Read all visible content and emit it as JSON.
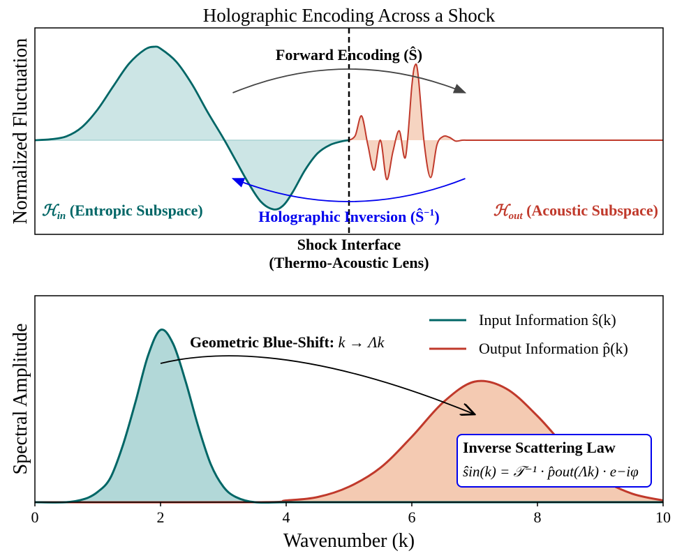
{
  "figure": {
    "colors": {
      "teal": "#006666",
      "teal_fill": "#aad4d4",
      "red": "#c0392b",
      "red_fill": "#f0b898",
      "blue": "#0000ee",
      "dark": "#444444",
      "black": "#000000"
    }
  },
  "chart_data": [
    {
      "type": "line",
      "title": "Holographic Encoding Across a Shock",
      "ylabel": "Normalized Fluctuation",
      "xlim": [
        0,
        10
      ],
      "ylim": [
        -1.0,
        1.0
      ],
      "grid": false,
      "divider": {
        "x": 5,
        "label_line1": "Shock Interface",
        "label_line2": "(Thermo-Acoustic Lens)"
      },
      "series": [
        {
          "role": "entropic",
          "color": "#006666",
          "x": [
            0,
            0.25,
            0.5,
            0.75,
            1.0,
            1.25,
            1.5,
            1.75,
            1.9,
            2.0,
            2.25,
            2.5,
            2.75,
            3.0,
            3.2,
            3.4,
            3.6,
            3.8,
            3.95,
            4.1,
            4.3,
            4.5,
            4.7,
            4.9,
            5.0
          ],
          "y": [
            0,
            0.01,
            0.04,
            0.14,
            0.33,
            0.58,
            0.82,
            0.97,
            1.0,
            0.98,
            0.84,
            0.6,
            0.3,
            0.02,
            -0.22,
            -0.46,
            -0.66,
            -0.74,
            -0.7,
            -0.56,
            -0.32,
            -0.14,
            -0.05,
            -0.01,
            0
          ]
        },
        {
          "role": "acoustic",
          "color": "#c0392b",
          "x": [
            5.0,
            5.1,
            5.2,
            5.3,
            5.4,
            5.5,
            5.6,
            5.7,
            5.8,
            5.9,
            6.0,
            6.05,
            6.1,
            6.2,
            6.3,
            6.4,
            6.5,
            6.6,
            6.7,
            6.8,
            6.9,
            7.0,
            7.5,
            8,
            10
          ],
          "y": [
            0,
            0.05,
            0.26,
            -0.05,
            -0.32,
            0.0,
            -0.42,
            -0.12,
            0.1,
            -0.18,
            0.58,
            0.8,
            0.7,
            -0.05,
            -0.4,
            -0.05,
            0.04,
            0.03,
            -0.01,
            0.0,
            0.0,
            0,
            0,
            0,
            0
          ]
        }
      ],
      "annotations": {
        "forward": {
          "label": "Forward Encoding (Ŝ)",
          "from_x": 3.15,
          "to_x": 6.85
        },
        "inverse": {
          "label": "Holographic Inversion (Ŝ",
          "superscript": "−1",
          "close": ")",
          "from_x": 6.85,
          "to_x": 3.15
        },
        "h_in": {
          "symbol": "ℋ",
          "subscript": "in",
          "label": "(Entropic Subspace)"
        },
        "h_out": {
          "symbol": "ℋ",
          "subscript": "out",
          "label": "(Acoustic Subspace)"
        }
      }
    },
    {
      "type": "area",
      "xlabel": "Wavenumber (k)",
      "ylabel": "Spectral Amplitude",
      "xlim": [
        0,
        10
      ],
      "ylim": [
        0,
        1.2
      ],
      "xticks": [
        0,
        2,
        4,
        6,
        8,
        10
      ],
      "grid": false,
      "legend": "top-right",
      "series": [
        {
          "name": "Input Information ŝ(k)",
          "color": "#006666",
          "x": [
            0,
            0.5,
            0.8,
            1.0,
            1.2,
            1.4,
            1.6,
            1.8,
            2.0,
            2.2,
            2.4,
            2.6,
            2.8,
            3.0,
            3.2,
            3.5,
            4.0,
            5,
            10
          ],
          "y": [
            0,
            0.0,
            0.02,
            0.06,
            0.14,
            0.33,
            0.58,
            0.85,
            1.0,
            0.92,
            0.7,
            0.44,
            0.22,
            0.09,
            0.03,
            0.0,
            0,
            0,
            0
          ]
        },
        {
          "name": "Output Information p̂(k)",
          "color": "#c0392b",
          "x": [
            0,
            3.5,
            4.0,
            4.5,
            5.0,
            5.5,
            6.0,
            6.5,
            7.0,
            7.5,
            8.0,
            8.5,
            9.0,
            9.5,
            10.0
          ],
          "y": [
            0,
            0.0,
            0.01,
            0.03,
            0.09,
            0.2,
            0.38,
            0.58,
            0.7,
            0.66,
            0.5,
            0.3,
            0.14,
            0.05,
            0.01
          ]
        }
      ],
      "annotations": {
        "shift": {
          "label": "Geometric Blue-Shift:",
          "formula": "k → Λk",
          "from_x": 2.0,
          "to_x": 7.0
        },
        "law": {
          "title": "Inverse Scattering Law",
          "formula": "ŝin(k) = 𝒯⁻¹ · p̂out(Λk) · e−iφ"
        }
      }
    }
  ]
}
